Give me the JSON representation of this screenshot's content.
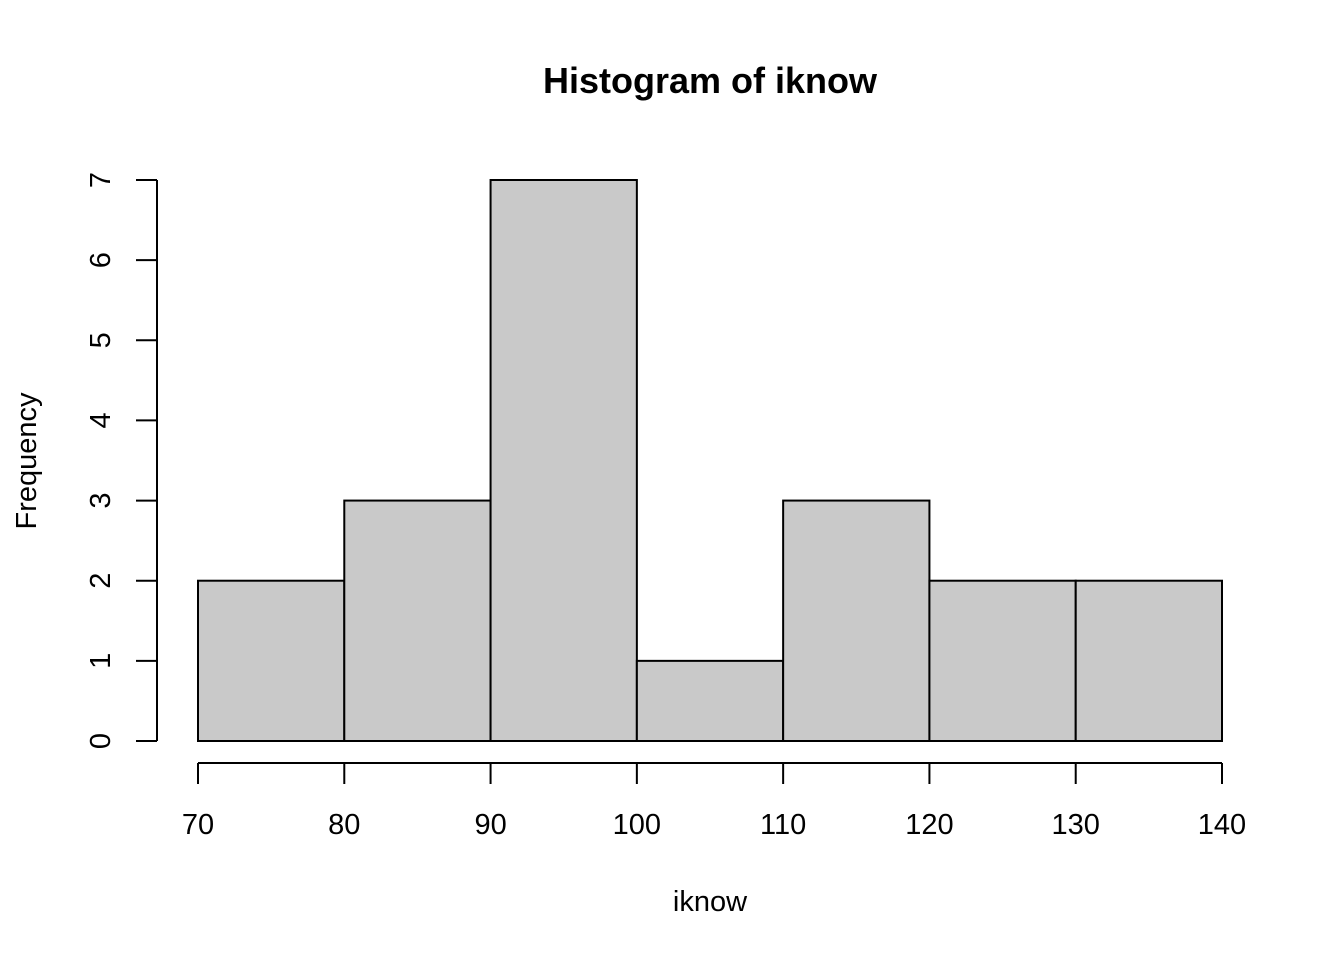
{
  "chart_data": {
    "type": "bar",
    "title": "Histogram of iknow",
    "xlabel": "iknow",
    "ylabel": "Frequency",
    "bins": [
      {
        "start": 70,
        "end": 80,
        "count": 2
      },
      {
        "start": 80,
        "end": 90,
        "count": 3
      },
      {
        "start": 90,
        "end": 100,
        "count": 7
      },
      {
        "start": 100,
        "end": 110,
        "count": 1
      },
      {
        "start": 110,
        "end": 120,
        "count": 3
      },
      {
        "start": 120,
        "end": 130,
        "count": 2
      },
      {
        "start": 130,
        "end": 140,
        "count": 2
      }
    ],
    "x_ticks": [
      70,
      80,
      90,
      100,
      110,
      120,
      130,
      140
    ],
    "y_ticks": [
      0,
      1,
      2,
      3,
      4,
      5,
      6,
      7
    ],
    "xlim": [
      70,
      140
    ],
    "ylim": [
      0,
      7
    ],
    "grid": false,
    "bar_color": "#c9c9c9",
    "edge_color": "#000000"
  }
}
